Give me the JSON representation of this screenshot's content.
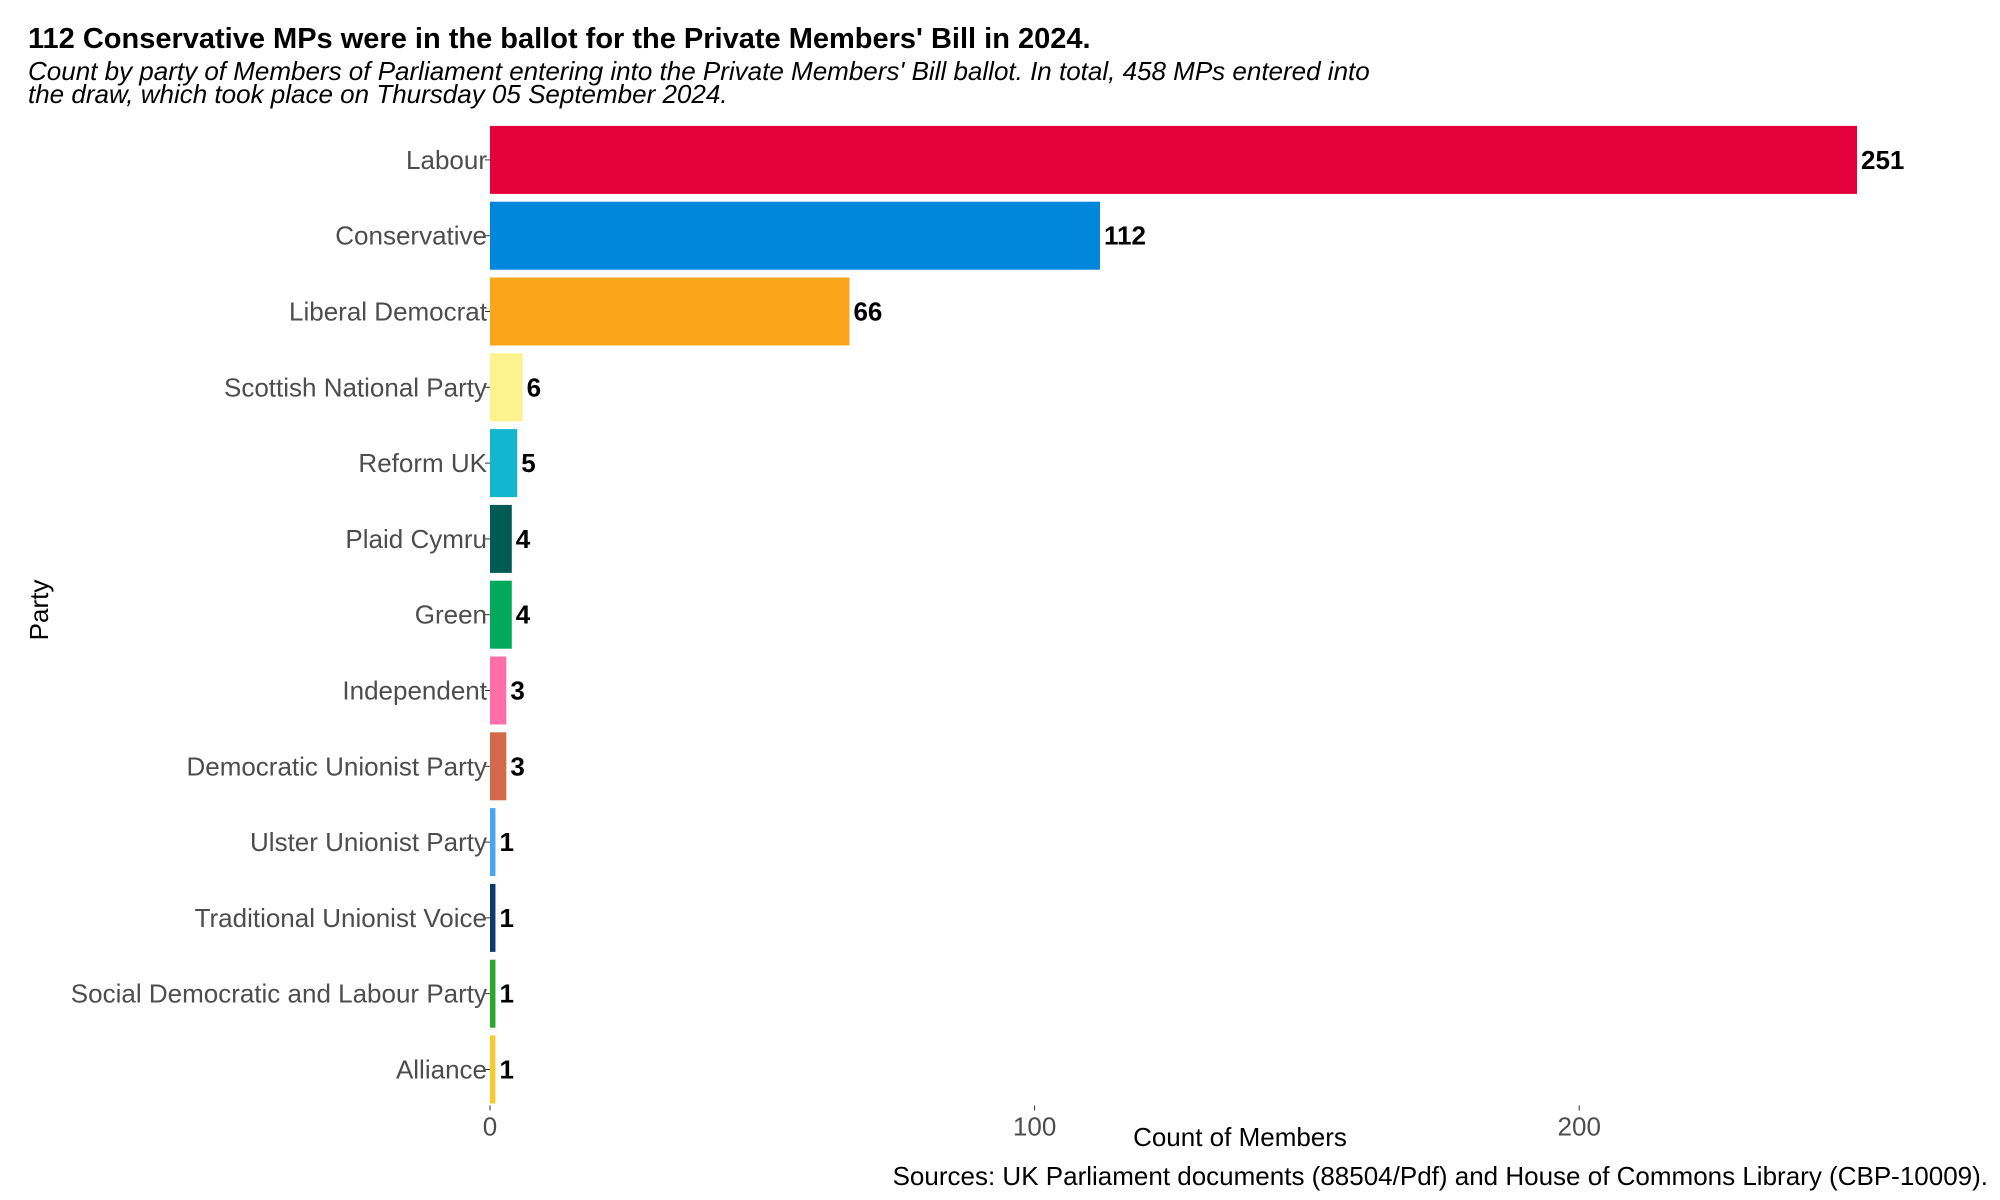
{
  "chart_data": {
    "type": "bar",
    "orientation": "horizontal",
    "title": "112 Conservative MPs were in the ballot for the Private Members' Bill in 2024.",
    "subtitle_lines": [
      "Count by party of Members of Parliament entering into the Private Members' Bill ballot. In total, 458 MPs entered into",
      "the draw, which took place on Thursday 05 September 2024."
    ],
    "xlabel": "Count of Members",
    "ylabel": "Party",
    "xlim": [
      0,
      251
    ],
    "xticks": [
      0,
      100,
      200
    ],
    "grid": false,
    "legend": "none",
    "caption": "Sources: UK Parliament documents (88504/Pdf) and House of Commons Library (CBP-10009).",
    "categories": [
      "Labour",
      "Conservative",
      "Liberal Democrat",
      "Scottish National Party",
      "Reform UK",
      "Plaid Cymru",
      "Green",
      "Independent",
      "Democratic Unionist Party",
      "Ulster Unionist Party",
      "Traditional Unionist Voice",
      "Social Democratic and Labour Party",
      "Alliance"
    ],
    "values": [
      251,
      112,
      66,
      6,
      5,
      4,
      4,
      3,
      3,
      1,
      1,
      1,
      1
    ],
    "colors": [
      "#E4003B",
      "#0087DC",
      "#FAA61A",
      "#FDF38E",
      "#12B6CF",
      "#005B54",
      "#02A95B",
      "#FF6EA7",
      "#D46A4C",
      "#48A5EE",
      "#0C3A6A",
      "#2AA82C",
      "#F6CB2F"
    ]
  }
}
